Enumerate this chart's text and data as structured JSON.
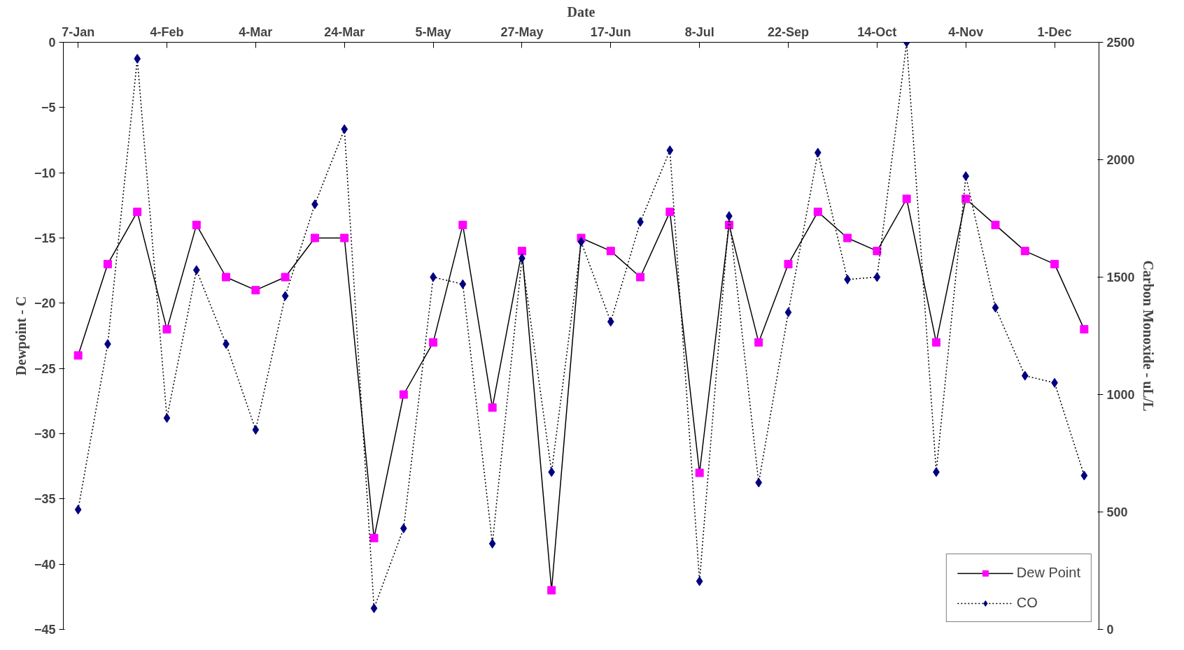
{
  "chart_data": {
    "type": "line",
    "xlabel": "Date",
    "ylabel": "Dewpoint - C",
    "y2label": "Carbon Monoxide - uL/L",
    "categories": [
      "7-Jan",
      null,
      null,
      "4-Feb",
      null,
      null,
      "4-Mar",
      null,
      null,
      "24-Mar",
      null,
      null,
      "5-May",
      null,
      null,
      "27-May",
      null,
      null,
      "17-Jun",
      null,
      null,
      "8-Jul",
      null,
      null,
      "22-Sep",
      null,
      null,
      "14-Oct",
      null,
      null,
      "4-Nov",
      null,
      null,
      "1-Dec",
      null
    ],
    "series": [
      {
        "name": "Dew Point",
        "color": "#ff00ff",
        "marker": "square",
        "line_style": "solid",
        "values": [
          -24,
          -17,
          -13,
          -22,
          -14,
          -18,
          -19,
          -18,
          -15,
          -15,
          -38,
          -27,
          -23,
          -14,
          -28,
          -16,
          -42,
          -15,
          -16,
          -18,
          -13,
          -33,
          -14,
          -23,
          -17,
          -13,
          -15,
          -16,
          -12,
          -23,
          -12,
          -14,
          -16,
          -17,
          -22
        ]
      },
      {
        "name": "CO",
        "color": "#000080",
        "marker": "diamond",
        "line_style": "dotted",
        "axis": "y2",
        "values": [
          510,
          1215,
          2430,
          900,
          1530,
          1215,
          850,
          1420,
          1810,
          2130,
          90,
          430,
          1500,
          1470,
          365,
          1580,
          670,
          1650,
          1310,
          1735,
          2040,
          205,
          1760,
          625,
          1350,
          2030,
          1490,
          1500,
          2500,
          670,
          1930,
          1370,
          1080,
          1050,
          655
        ]
      }
    ],
    "ylim": [
      -45,
      0
    ],
    "yticks": [
      -45,
      -40,
      -35,
      -30,
      -25,
      -20,
      -15,
      -10,
      -5,
      0
    ],
    "y2lim": [
      0,
      2500
    ],
    "y2ticks": [
      0,
      500,
      1000,
      1500,
      2000,
      2500
    ],
    "grid": false,
    "legend": "bottom right"
  }
}
